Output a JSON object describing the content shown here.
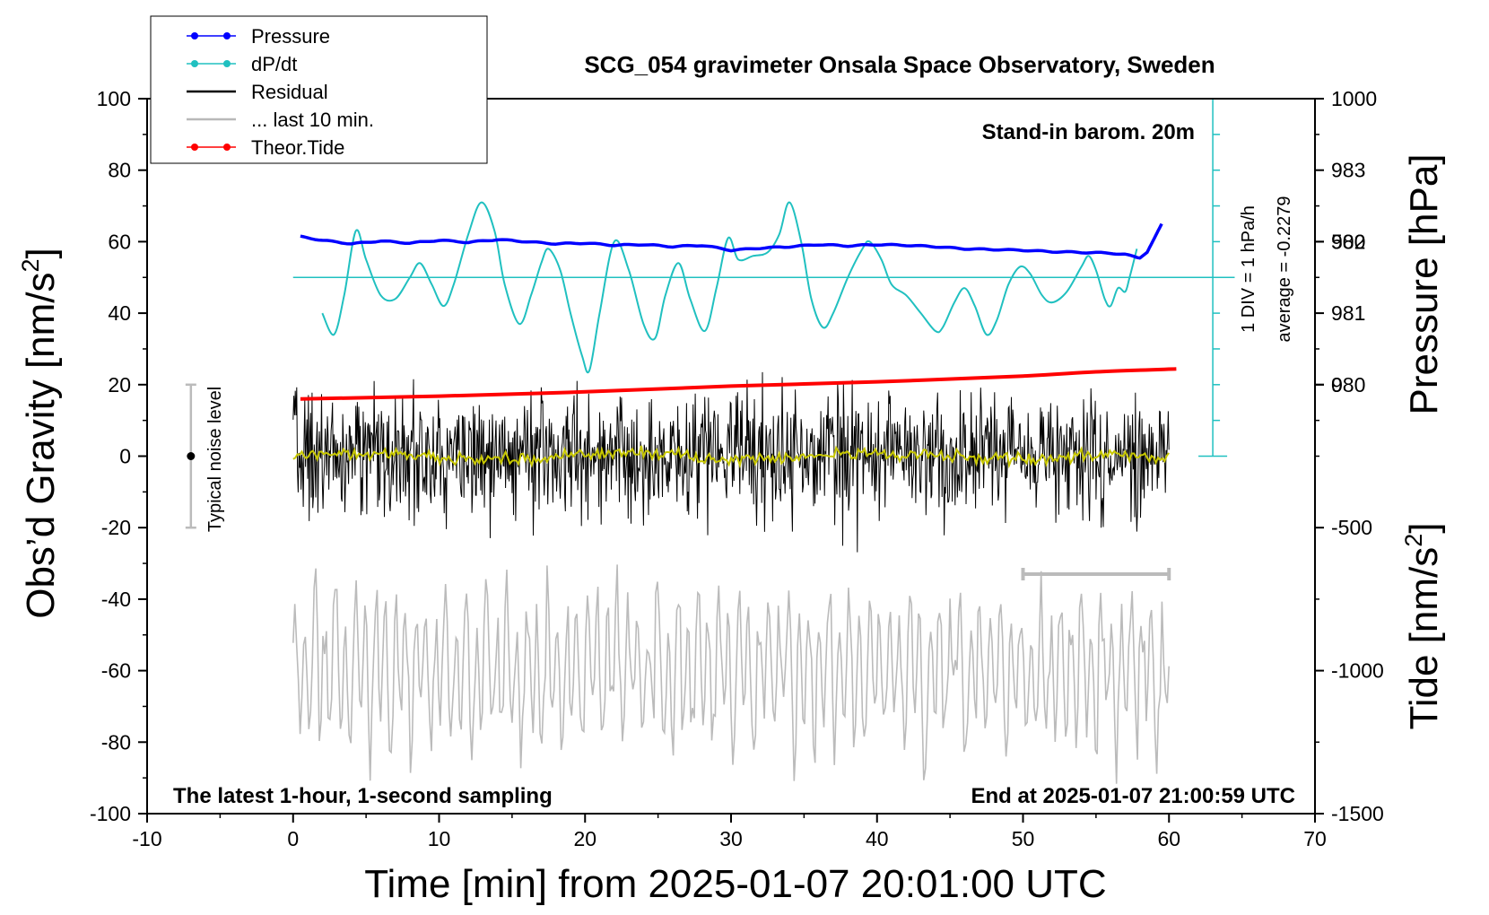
{
  "chart_data": {
    "type": "line",
    "title": "SCG_054 gravimeter Onsala Space Observatory, Sweden",
    "xlabel": "Time [min] from 2025-01-07 20:01:00 UTC",
    "ylabel_left": "Obs’d Gravity [nm/s",
    "ylabel_left_sup": "2",
    "ylabel_left_end": "]",
    "ylabel_pressure": "Pressure [hPa]",
    "ylabel_tide": "Tide [nm/s",
    "ylabel_tide_sup": "2",
    "ylabel_tide_end": "]",
    "xlim": [
      -10,
      70
    ],
    "ylim": [
      -100,
      100
    ],
    "x_ticks": [
      "-10",
      "0",
      "10",
      "20",
      "30",
      "40",
      "50",
      "60",
      "70"
    ],
    "x_tick_values": [
      -10,
      0,
      10,
      20,
      30,
      40,
      50,
      60,
      70
    ],
    "y_ticks": [
      "100",
      "80",
      "60",
      "40",
      "20",
      "0",
      "-20",
      "-40",
      "-60",
      "-80",
      "-100"
    ],
    "y_tick_values": [
      100,
      80,
      60,
      40,
      20,
      0,
      -20,
      -40,
      -60,
      -80,
      -100
    ],
    "pressure_ticks": [
      "983",
      "982",
      "981",
      "980"
    ],
    "pressure_tick_values": [
      983,
      982,
      981,
      980
    ],
    "pressure_axis_map": {
      "hPa_at_y0": 979,
      "gravity_units_per_hPa": 20
    },
    "tide_ticks": [
      "1000",
      "500",
      "0",
      "-500",
      "-1000",
      "-1500"
    ],
    "tide_tick_values": [
      1000,
      500,
      0,
      -500,
      -1000,
      -1500
    ],
    "tide_axis_map": {
      "tide_at_y_minus100": -1500,
      "tide_per_gravity_unit": 12.5
    },
    "annotations": {
      "stand_in": "Stand-in barom. 20m",
      "div_label": "1 DIV = 1 hPa/h",
      "average_label": "average = -0.2279",
      "noise_label": "Typical noise level",
      "latest": "The latest 1-hour, 1-second sampling",
      "end_at": "End at 2025-01-07 21:00:59 UTC"
    },
    "legend": [
      {
        "label": "Pressure",
        "color": "#0000ff",
        "marker": true
      },
      {
        "label": "dP/dt",
        "color": "#20c0c0",
        "marker": true
      },
      {
        "label": "Residual",
        "color": "#000000",
        "marker": false
      },
      {
        "label": "... last 10 min.",
        "color": "#b8b8b8",
        "marker": false
      },
      {
        "label": "Theor.Tide",
        "color": "#ff0000",
        "marker": true
      }
    ],
    "series": [
      {
        "name": "Pressure",
        "color": "#0000ff",
        "y_units": "hPa",
        "points": [
          [
            0.5,
            982.07
          ],
          [
            2,
            982.02
          ],
          [
            4,
            981.97
          ],
          [
            6,
            982.01
          ],
          [
            8,
            981.98
          ],
          [
            10,
            982.02
          ],
          [
            12,
            981.99
          ],
          [
            14,
            982.03
          ],
          [
            16,
            982.0
          ],
          [
            18,
            981.97
          ],
          [
            20,
            981.98
          ],
          [
            22,
            981.95
          ],
          [
            24,
            981.96
          ],
          [
            26,
            981.93
          ],
          [
            28,
            981.95
          ],
          [
            30,
            981.88
          ],
          [
            32,
            981.91
          ],
          [
            34,
            981.93
          ],
          [
            36,
            981.96
          ],
          [
            38,
            981.94
          ],
          [
            40,
            981.96
          ],
          [
            42,
            981.95
          ],
          [
            44,
            981.93
          ],
          [
            46,
            981.9
          ],
          [
            48,
            981.89
          ],
          [
            50,
            981.88
          ],
          [
            52,
            981.86
          ],
          [
            54,
            981.85
          ],
          [
            56,
            981.84
          ],
          [
            57,
            981.82
          ],
          [
            58,
            981.77
          ],
          [
            58.5,
            981.85
          ],
          [
            59,
            982.05
          ],
          [
            59.5,
            982.25
          ]
        ]
      },
      {
        "name": "dP/dt",
        "color": "#20c0c0",
        "y_units": "gravity-axis",
        "baseline": 50,
        "points": [
          [
            2,
            40
          ],
          [
            2.8,
            34
          ],
          [
            3.5,
            45
          ],
          [
            4.3,
            63
          ],
          [
            5,
            55
          ],
          [
            6,
            45
          ],
          [
            7,
            44
          ],
          [
            8,
            50
          ],
          [
            8.7,
            54
          ],
          [
            9.5,
            48
          ],
          [
            10.3,
            42
          ],
          [
            11,
            48
          ],
          [
            12,
            62
          ],
          [
            12.9,
            71
          ],
          [
            13.8,
            63
          ],
          [
            14.5,
            48
          ],
          [
            15.5,
            37
          ],
          [
            16.3,
            45
          ],
          [
            17,
            54
          ],
          [
            17.5,
            58
          ],
          [
            18.3,
            52
          ],
          [
            19,
            40
          ],
          [
            19.8,
            28
          ],
          [
            20.3,
            24
          ],
          [
            21,
            40
          ],
          [
            22,
            60
          ],
          [
            23,
            52
          ],
          [
            24,
            37
          ],
          [
            24.8,
            33
          ],
          [
            25.5,
            45
          ],
          [
            26.4,
            54
          ],
          [
            27.2,
            44
          ],
          [
            28.2,
            35
          ],
          [
            29,
            47
          ],
          [
            29.8,
            61
          ],
          [
            30.5,
            55
          ],
          [
            31.5,
            56
          ],
          [
            32.5,
            57
          ],
          [
            33.3,
            62
          ],
          [
            34,
            71
          ],
          [
            34.8,
            60
          ],
          [
            35.5,
            44
          ],
          [
            36.3,
            36
          ],
          [
            37,
            40
          ],
          [
            38,
            50
          ],
          [
            39,
            58
          ],
          [
            39.5,
            60
          ],
          [
            40.3,
            55
          ],
          [
            41,
            48
          ],
          [
            42,
            45
          ],
          [
            43,
            40
          ],
          [
            44,
            35
          ],
          [
            44.5,
            36
          ],
          [
            45.3,
            43
          ],
          [
            46,
            47
          ],
          [
            46.7,
            42
          ],
          [
            47.5,
            34
          ],
          [
            48.2,
            38
          ],
          [
            49,
            48
          ],
          [
            49.8,
            53
          ],
          [
            50.5,
            51
          ],
          [
            51.3,
            45
          ],
          [
            52,
            43
          ],
          [
            53,
            46
          ],
          [
            54,
            53
          ],
          [
            54.5,
            56
          ],
          [
            55,
            52
          ],
          [
            55.6,
            44
          ],
          [
            56,
            42
          ],
          [
            56.5,
            47
          ],
          [
            57,
            46
          ],
          [
            57.3,
            50
          ],
          [
            57.8,
            58
          ]
        ]
      },
      {
        "name": "Theor.Tide",
        "color": "#ff0000",
        "y_units": "nm/s2",
        "points": [
          [
            0.5,
            -50
          ],
          [
            10,
            -40
          ],
          [
            20,
            -25
          ],
          [
            30,
            -5
          ],
          [
            40,
            10
          ],
          [
            50,
            30
          ],
          [
            55,
            45
          ],
          [
            60.5,
            55
          ]
        ]
      }
    ],
    "residual": {
      "range_x": [
        0,
        60
      ],
      "baseline": 0,
      "typical_amplitude": 15,
      "max_amplitude": 32
    },
    "residual_smooth": {
      "color": "#c8c800"
    },
    "last_10_min": {
      "range_x": [
        0,
        60
      ],
      "center": -60,
      "amplitude": 25,
      "color": "#bbbbbb",
      "bracket_x": [
        50,
        60
      ],
      "bracket_y": -33
    },
    "noise_bar": {
      "x": -7,
      "y_center": 0,
      "half_range": 20
    },
    "dpdt_scale": {
      "x": 63,
      "y_from": 0,
      "y_to": 100,
      "baseline": 50,
      "div_step": 10
    }
  }
}
